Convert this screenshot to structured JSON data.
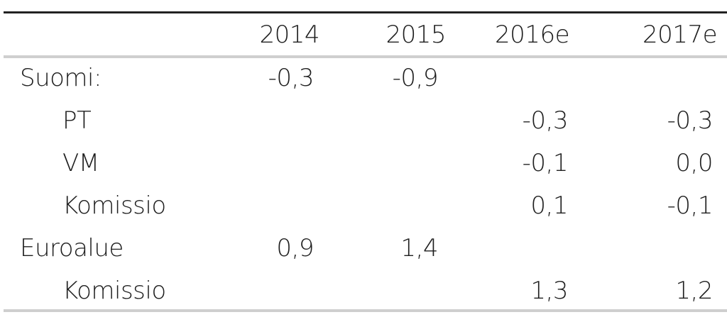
{
  "table": {
    "columns": [
      "2014",
      "2015",
      "2016e",
      "2017e"
    ],
    "groups": [
      {
        "label": "Suomi:",
        "values": [
          "-0,3",
          "-0,9",
          null,
          null
        ],
        "rows": [
          {
            "label": "PT",
            "values": [
              null,
              null,
              "-0,3",
              "-0,3"
            ]
          },
          {
            "label": "VM",
            "values": [
              null,
              null,
              "-0,1",
              "0,0"
            ]
          },
          {
            "label": "Komissio",
            "values": [
              null,
              null,
              "0,1",
              "-0,1"
            ]
          }
        ]
      },
      {
        "label": "Euroalue",
        "values": [
          "0,9",
          "1,4",
          null,
          null
        ],
        "rows": [
          {
            "label": "Komissio",
            "values": [
              null,
              null,
              "1,3",
              "1,2"
            ]
          }
        ]
      }
    ]
  }
}
